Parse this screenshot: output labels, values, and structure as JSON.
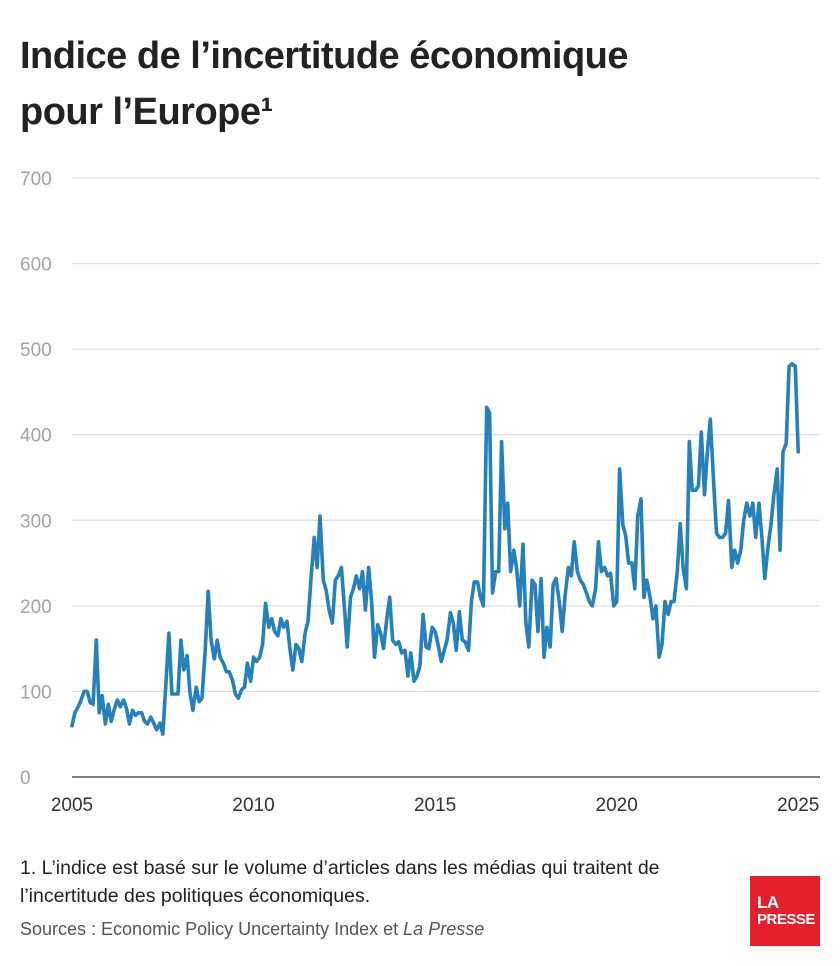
{
  "title": "Indice de l’incertitude économique pour l’Europe¹",
  "footnote": "1. L’indice est basé sur le volume d’articles dans les médias qui traitent de l’incertitude des politiques économiques.",
  "sources": {
    "prefix": "Sources : Economic Policy Uncertainty Index et ",
    "italic": "La Presse"
  },
  "logo": {
    "line1": "LA",
    "line2": "PRESSE",
    "color": "#e4202d"
  },
  "colors": {
    "series": "#2680b9",
    "grid": "#d9d9d9",
    "ytick": "#a3a3a3"
  },
  "chart_data": {
    "type": "line",
    "ylim": [
      0,
      700
    ],
    "yticks": [
      "0",
      "100",
      "200",
      "300",
      "400",
      "500",
      "600",
      "700"
    ],
    "xlim": [
      2005,
      2025.6
    ],
    "xticks": [
      "2005",
      "2010",
      "2015",
      "2020",
      "2025"
    ],
    "grid": true,
    "series": [
      {
        "x": [
          2005.0,
          2005.08,
          2005.17,
          2005.25,
          2005.33,
          2005.42,
          2005.5,
          2005.58,
          2005.67,
          2005.75,
          2005.83,
          2005.92,
          2006.0,
          2006.08,
          2006.17,
          2006.25,
          2006.33,
          2006.42,
          2006.5,
          2006.58,
          2006.67,
          2006.75,
          2006.83,
          2006.92,
          2007.0,
          2007.08,
          2007.17,
          2007.25,
          2007.33,
          2007.42,
          2007.5,
          2007.58,
          2007.67,
          2007.75,
          2007.83,
          2007.92,
          2008.0,
          2008.08,
          2008.17,
          2008.25,
          2008.33,
          2008.42,
          2008.5,
          2008.58,
          2008.67,
          2008.75,
          2008.83,
          2008.92,
          2009.0,
          2009.08,
          2009.17,
          2009.25,
          2009.33,
          2009.42,
          2009.5,
          2009.58,
          2009.67,
          2009.75,
          2009.83,
          2009.92,
          2010.0,
          2010.08,
          2010.17,
          2010.25,
          2010.33,
          2010.42,
          2010.5,
          2010.58,
          2010.67,
          2010.75,
          2010.83,
          2010.92,
          2011.0,
          2011.08,
          2011.17,
          2011.25,
          2011.33,
          2011.42,
          2011.5,
          2011.58,
          2011.67,
          2011.75,
          2011.83,
          2011.92,
          2012.0,
          2012.08,
          2012.17,
          2012.25,
          2012.33,
          2012.42,
          2012.5,
          2012.58,
          2012.67,
          2012.75,
          2012.83,
          2012.92,
          2013.0,
          2013.08,
          2013.17,
          2013.25,
          2013.33,
          2013.42,
          2013.5,
          2013.58,
          2013.67,
          2013.75,
          2013.83,
          2013.92,
          2014.0,
          2014.08,
          2014.17,
          2014.25,
          2014.33,
          2014.42,
          2014.5,
          2014.58,
          2014.67,
          2014.75,
          2014.83,
          2014.92,
          2015.0,
          2015.08,
          2015.17,
          2015.25,
          2015.33,
          2015.42,
          2015.5,
          2015.58,
          2015.67,
          2015.75,
          2015.83,
          2015.92,
          2016.0,
          2016.08,
          2016.17,
          2016.25,
          2016.33,
          2016.42,
          2016.5,
          2016.58,
          2016.67,
          2016.75,
          2016.83,
          2016.92,
          2017.0,
          2017.08,
          2017.17,
          2017.25,
          2017.33,
          2017.42,
          2017.5,
          2017.58,
          2017.67,
          2017.75,
          2017.83,
          2017.92,
          2018.0,
          2018.08,
          2018.17,
          2018.25,
          2018.33,
          2018.42,
          2018.5,
          2018.58,
          2018.67,
          2018.75,
          2018.83,
          2018.92,
          2019.0,
          2019.08,
          2019.17,
          2019.25,
          2019.33,
          2019.42,
          2019.5,
          2019.58,
          2019.67,
          2019.75,
          2019.83,
          2019.92,
          2020.0,
          2020.08,
          2020.17,
          2020.25,
          2020.33,
          2020.42,
          2020.5,
          2020.58,
          2020.67,
          2020.75,
          2020.83,
          2020.92,
          2021.0,
          2021.08,
          2021.17,
          2021.25,
          2021.33,
          2021.42,
          2021.5,
          2021.58,
          2021.67,
          2021.75,
          2021.83,
          2021.92,
          2022.0,
          2022.08,
          2022.17,
          2022.25,
          2022.33,
          2022.42,
          2022.5,
          2022.58,
          2022.67,
          2022.75,
          2022.83,
          2022.92,
          2023.0,
          2023.08,
          2023.17,
          2023.25,
          2023.33,
          2023.42,
          2023.5,
          2023.58,
          2023.67,
          2023.75,
          2023.83,
          2023.92,
          2024.0,
          2024.08,
          2024.17,
          2024.25,
          2024.33,
          2024.42,
          2024.5,
          2024.58,
          2024.67,
          2024.75,
          2024.83,
          2024.92,
          2025.0
        ],
        "values": [
          60,
          75,
          82,
          90,
          100,
          100,
          87,
          85,
          160,
          75,
          95,
          62,
          85,
          65,
          80,
          90,
          82,
          90,
          80,
          62,
          78,
          72,
          75,
          75,
          65,
          62,
          70,
          63,
          55,
          63,
          50,
          105,
          168,
          97,
          97,
          97,
          160,
          125,
          142,
          98,
          78,
          105,
          88,
          92,
          150,
          217,
          160,
          138,
          160,
          140,
          133,
          123,
          123,
          113,
          97,
          92,
          102,
          105,
          133,
          112,
          140,
          135,
          140,
          155,
          203,
          175,
          185,
          170,
          165,
          185,
          175,
          182,
          150,
          125,
          155,
          150,
          135,
          168,
          182,
          230,
          280,
          245,
          305,
          230,
          218,
          195,
          180,
          230,
          235,
          245,
          200,
          152,
          210,
          220,
          235,
          220,
          240,
          195,
          245,
          205,
          140,
          178,
          168,
          150,
          185,
          210,
          160,
          155,
          158,
          145,
          148,
          118,
          145,
          112,
          118,
          130,
          190,
          152,
          150,
          175,
          170,
          155,
          135,
          148,
          160,
          192,
          180,
          148,
          193,
          160,
          158,
          148,
          205,
          228,
          228,
          210,
          200,
          432,
          425,
          215,
          240,
          240,
          392,
          290,
          320,
          240,
          265,
          242,
          200,
          272,
          180,
          152,
          230,
          225,
          170,
          232,
          140,
          175,
          152,
          225,
          232,
          205,
          170,
          212,
          245,
          235,
          275,
          240,
          230,
          225,
          215,
          205,
          200,
          220,
          275,
          240,
          245,
          235,
          238,
          200,
          205,
          360,
          295,
          282,
          250,
          250,
          220,
          305,
          325,
          210,
          230,
          210,
          185,
          200,
          140,
          155,
          205,
          190,
          205,
          205,
          240,
          296,
          245,
          220,
          392,
          335,
          335,
          340,
          403,
          330,
          380,
          418,
          345,
          285,
          280,
          280,
          285,
          323,
          245,
          265,
          250,
          265,
          300,
          320,
          305,
          320,
          280,
          320,
          280,
          232,
          270,
          295,
          330,
          360,
          265,
          380,
          390,
          480,
          483,
          480,
          380
        ]
      }
    ]
  }
}
